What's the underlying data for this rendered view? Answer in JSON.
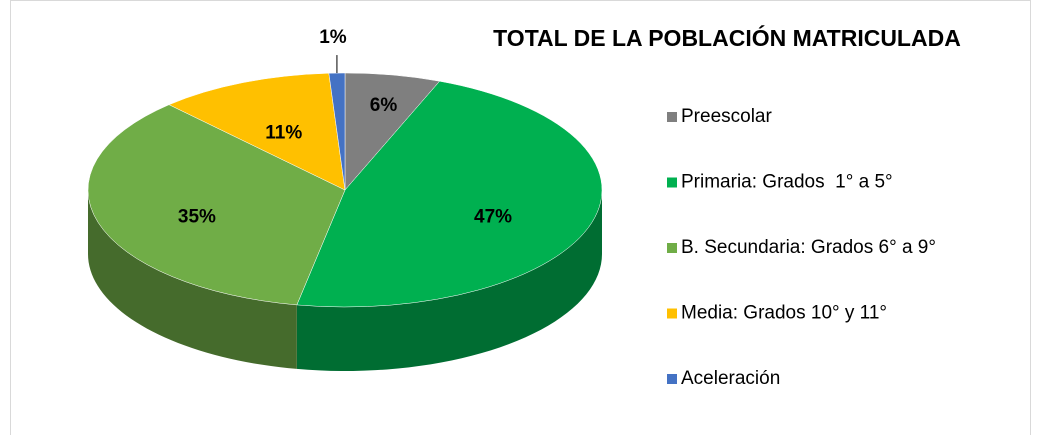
{
  "chart_data": {
    "type": "pie",
    "title": "TOTAL DE LA POBLACIÓN MATRICULADA",
    "categories": [
      "Preescolar",
      "Primaria: Grados  1° a 5°",
      "B. Secundaria: Grados 6° a 9°",
      "Media: Grados 10° y 11°",
      "Aceleración"
    ],
    "values": [
      6,
      47,
      35,
      11,
      1
    ],
    "value_labels": [
      "6%",
      "47%",
      "35%",
      "11%",
      "1%"
    ],
    "colors": [
      "#7f7f7f",
      "#00b050",
      "#70ad47",
      "#ffc000",
      "#4472c4"
    ],
    "legend": "right"
  }
}
